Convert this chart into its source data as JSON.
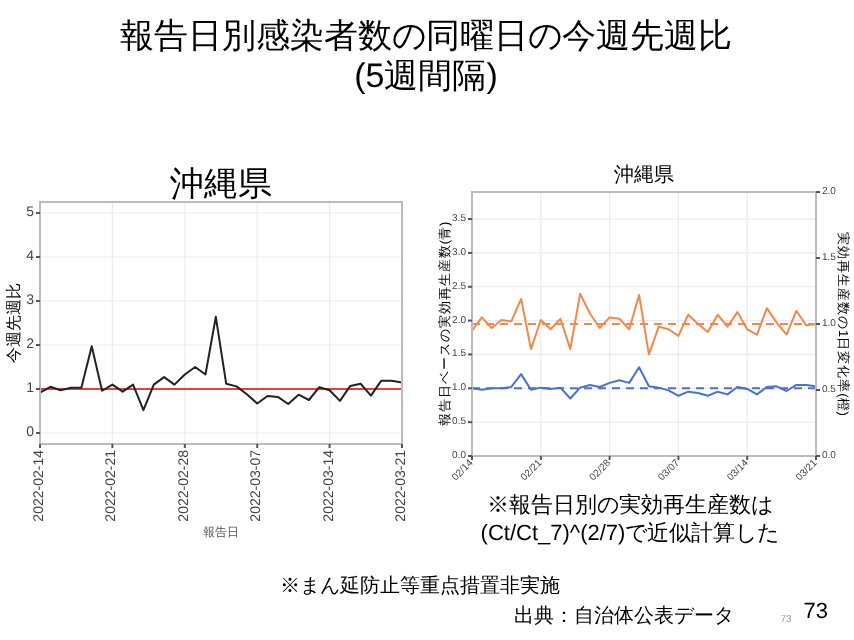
{
  "chart_data": [
    {
      "type": "line",
      "title": "報告日別感染者数の同曜日の今週先週比\n(5週間隔)",
      "subtitle": "沖縄県",
      "xlabel": "報告日",
      "ylabel": "今週先週比",
      "x": [
        "2022-02-14",
        "2022-02-15",
        "2022-02-16",
        "2022-02-17",
        "2022-02-18",
        "2022-02-19",
        "2022-02-20",
        "2022-02-21",
        "2022-02-22",
        "2022-02-23",
        "2022-02-24",
        "2022-02-25",
        "2022-02-26",
        "2022-02-27",
        "2022-02-28",
        "2022-03-01",
        "2022-03-02",
        "2022-03-03",
        "2022-03-04",
        "2022-03-05",
        "2022-03-06",
        "2022-03-07",
        "2022-03-08",
        "2022-03-09",
        "2022-03-10",
        "2022-03-11",
        "2022-03-12",
        "2022-03-13",
        "2022-03-14",
        "2022-03-15",
        "2022-03-16",
        "2022-03-17",
        "2022-03-18",
        "2022-03-19",
        "2022-03-20",
        "2022-03-21"
      ],
      "series": [
        {
          "color": "#222222",
          "values": [
            0.92,
            1.05,
            0.97,
            1.03,
            1.03,
            1.97,
            0.96,
            1.1,
            0.94,
            1.1,
            0.52,
            1.1,
            1.27,
            1.1,
            1.33,
            1.5,
            1.33,
            2.64,
            1.12,
            1.06,
            0.88,
            0.67,
            0.84,
            0.82,
            0.66,
            0.87,
            0.75,
            1.04,
            0.97,
            0.73,
            1.07,
            1.12,
            0.85,
            1.19,
            1.19,
            1.15
          ]
        }
      ],
      "xlim": [
        "2022-02-14",
        "2022-03-21"
      ],
      "xticks": [
        "2022-02-14",
        "2022-02-21",
        "2022-02-28",
        "2022-03-07",
        "2022-03-14",
        "2022-03-21"
      ],
      "ylim": [
        -0.25,
        5.25
      ],
      "yticks": [
        0,
        1,
        2,
        3,
        4,
        5
      ],
      "grid": true,
      "ref_lines": [
        {
          "axis": "y",
          "value": 1,
          "color": "#e8413c"
        }
      ],
      "annotations": [
        "※まん延防止等重点措置非実施",
        "出典：自治体公表データ",
        "73",
        "73"
      ]
    },
    {
      "type": "line",
      "title": "沖縄県",
      "ylabel": "報告日ベースの実効再生産数(青)",
      "y2label": "実効再生産数の1日変化率(橙)",
      "x": [
        "--02-14",
        "--02-15",
        "--02-16",
        "--02-17",
        "--02-18",
        "--02-19",
        "--02-20",
        "--02-21",
        "--02-22",
        "--02-23",
        "--02-24",
        "--02-25",
        "--02-26",
        "--02-27",
        "--02-28",
        "--03-01",
        "--03-02",
        "--03-03",
        "--03-04",
        "--03-05",
        "--03-06",
        "--03-07",
        "--03-08",
        "--03-09",
        "--03-10",
        "--03-11",
        "--03-12",
        "--03-13",
        "--03-14",
        "--03-15",
        "--03-16",
        "--03-17",
        "--03-18",
        "--03-19",
        "--03-20",
        "--03-21"
      ],
      "series": [
        {
          "color": "#f4874b",
          "axis": "y2",
          "values": [
            0.95,
            1.05,
            0.97,
            1.03,
            1.02,
            1.19,
            0.81,
            1.03,
            0.96,
            1.04,
            0.81,
            1.23,
            1.08,
            0.97,
            1.05,
            1.04,
            0.96,
            1.22,
            0.77,
            0.98,
            0.96,
            0.91,
            1.07,
            1.0,
            0.94,
            1.07,
            0.98,
            1.09,
            0.96,
            0.92,
            1.12,
            1.01,
            0.92,
            1.1,
            0.99,
            1.0
          ]
        },
        {
          "color": "#4a6fd6",
          "values": [
            1.0,
            0.98,
            1.0,
            1.0,
            1.02,
            1.21,
            0.98,
            1.01,
            0.99,
            1.01,
            0.85,
            1.01,
            1.05,
            1.02,
            1.08,
            1.12,
            1.08,
            1.31,
            1.03,
            1.01,
            0.97,
            0.89,
            0.95,
            0.93,
            0.89,
            0.95,
            0.91,
            1.02,
            0.99,
            0.91,
            1.02,
            1.03,
            0.96,
            1.05,
            1.05,
            1.03
          ]
        }
      ],
      "xlim": [
        "--02-14",
        "--03-21"
      ],
      "xticks": [
        {
          "value": "--02-14",
          "label": "02/14"
        },
        {
          "value": "--02-21",
          "label": "02/21"
        },
        {
          "value": "--02-28",
          "label": "02/28"
        },
        {
          "value": "--03-07",
          "label": "03/07"
        },
        {
          "value": "--03-14",
          "label": "03/14"
        },
        {
          "value": "--03-21",
          "label": "03/21"
        }
      ],
      "ylim": [
        0,
        3.9
      ],
      "yticks": [
        {
          "value": 0,
          "label": "0.0"
        },
        {
          "value": 0.5,
          "label": "0.5"
        },
        {
          "value": 1,
          "label": "1.0"
        },
        {
          "value": 1.5,
          "label": "1.5"
        },
        {
          "value": 2,
          "label": "2.0"
        },
        {
          "value": 2.5,
          "label": "2.5"
        },
        {
          "value": 3,
          "label": "3.0"
        },
        {
          "value": 3.5,
          "label": "3.5"
        }
      ],
      "y2lim": [
        0,
        2
      ],
      "y2ticks": [
        {
          "value": 0,
          "label": "0.0"
        },
        {
          "value": 0.5,
          "label": "0.5"
        },
        {
          "value": 1,
          "label": "1.0"
        },
        {
          "value": 1.5,
          "label": "1.5"
        },
        {
          "value": 2,
          "label": "2.0"
        }
      ],
      "grid": true,
      "ref_lines": [
        {
          "axis": "y",
          "value": 1,
          "color": "#4a6fd6",
          "line_style": "dashed"
        },
        {
          "axis": "y2",
          "value": 1,
          "color": "#f4874b",
          "line_style": "dashed"
        }
      ],
      "annotations": [
        "※報告日別の実効再生産数は(Ct/Ct_7)^(2/7)で近似計算した"
      ]
    }
  ]
}
